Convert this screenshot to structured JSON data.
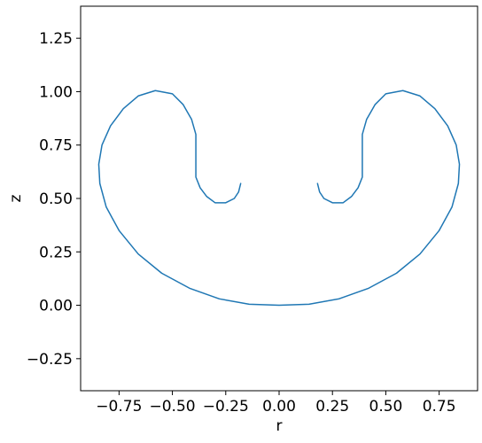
{
  "chart_data": {
    "type": "line",
    "title": "",
    "xlabel": "r",
    "ylabel": "z",
    "xlim": [
      -0.93,
      0.93
    ],
    "ylim": [
      -0.4,
      1.4
    ],
    "xticks": [
      -0.75,
      -0.5,
      -0.25,
      0.0,
      0.25,
      0.5,
      0.75
    ],
    "xtick_labels": [
      "−0.75",
      "−0.50",
      "−0.25",
      "0.00",
      "0.25",
      "0.50",
      "0.75"
    ],
    "yticks": [
      -0.25,
      0.0,
      0.25,
      0.5,
      0.75,
      1.0,
      1.25
    ],
    "ytick_labels": [
      "−0.25",
      "0.00",
      "0.25",
      "0.50",
      "0.75",
      "1.00",
      "1.25"
    ],
    "grid": false,
    "legend": "none",
    "line_color": "#1f77b4",
    "series": [
      {
        "x": [
          -0.18,
          -0.19,
          -0.21,
          -0.25,
          -0.3,
          -0.34,
          -0.37,
          -0.39,
          -0.39,
          -0.39,
          -0.39,
          -0.41,
          -0.45,
          -0.5,
          -0.58,
          -0.66,
          -0.73,
          -0.79,
          -0.83,
          -0.845,
          -0.84,
          -0.81,
          -0.75,
          -0.66,
          -0.55,
          -0.42,
          -0.28,
          -0.14,
          0.0,
          0.14,
          0.28,
          0.42,
          0.55,
          0.66,
          0.75,
          0.81,
          0.84,
          0.845,
          0.83,
          0.79,
          0.73,
          0.66,
          0.58,
          0.5,
          0.45,
          0.41,
          0.39,
          0.39,
          0.39,
          0.39,
          0.37,
          0.34,
          0.3,
          0.25,
          0.21,
          0.19,
          0.18
        ],
        "y": [
          0.57,
          0.53,
          0.5,
          0.48,
          0.48,
          0.51,
          0.55,
          0.6,
          0.67,
          0.74,
          0.8,
          0.87,
          0.94,
          0.99,
          1.005,
          0.98,
          0.92,
          0.84,
          0.75,
          0.66,
          0.57,
          0.46,
          0.35,
          0.24,
          0.15,
          0.08,
          0.03,
          0.005,
          0.0,
          0.005,
          0.03,
          0.08,
          0.15,
          0.24,
          0.35,
          0.46,
          0.57,
          0.66,
          0.75,
          0.84,
          0.92,
          0.98,
          1.005,
          0.99,
          0.94,
          0.87,
          0.8,
          0.74,
          0.67,
          0.6,
          0.55,
          0.51,
          0.48,
          0.48,
          0.5,
          0.53,
          0.57
        ]
      }
    ]
  }
}
